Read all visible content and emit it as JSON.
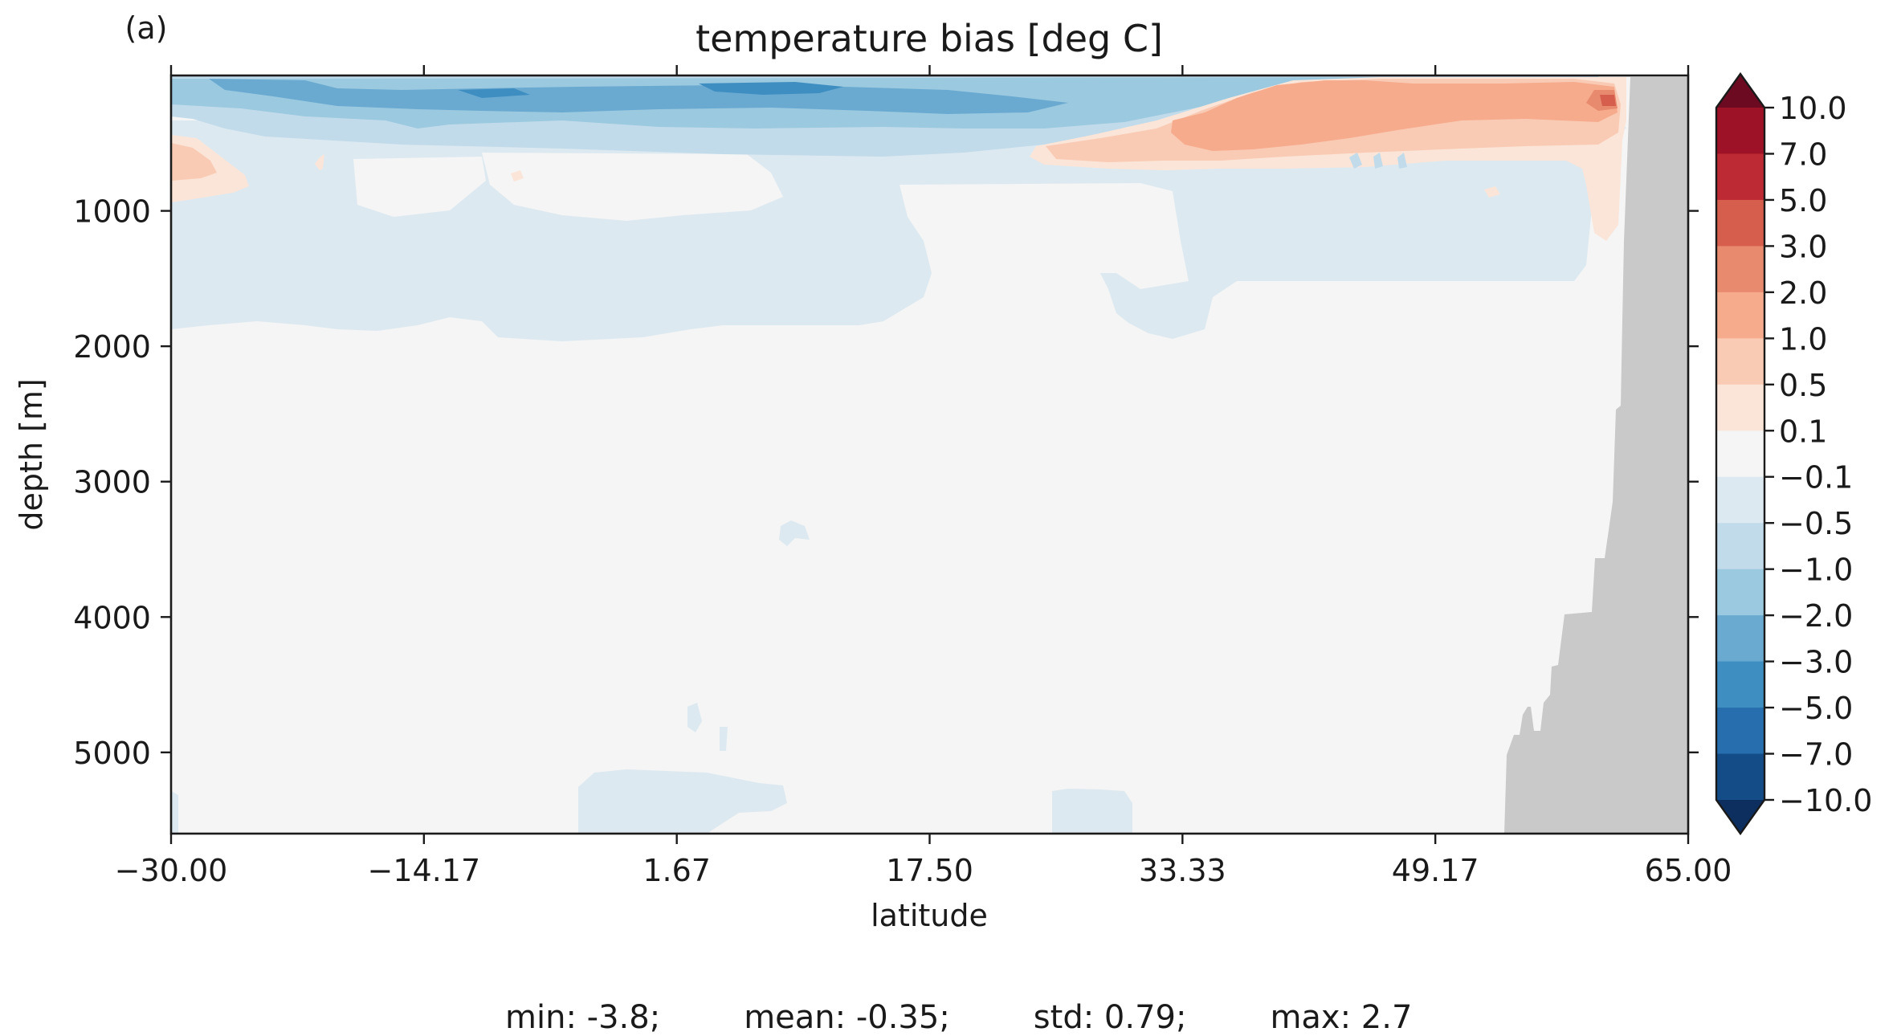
{
  "panel_label": "(a)",
  "chart_data": {
    "type": "heatmap",
    "title": "temperature bias [deg C]",
    "xlabel": "latitude",
    "ylabel": "depth [m]",
    "xlim": [
      -30.0,
      65.0
    ],
    "ylim": [
      5600,
      0
    ],
    "x_ticks": [
      "−30.00",
      "−14.17",
      "1.67",
      "17.50",
      "33.33",
      "49.17",
      "65.00"
    ],
    "y_ticks": [
      1000,
      2000,
      3000,
      4000,
      5000
    ],
    "colorbar": {
      "levels": [
        "10.0",
        "7.0",
        "5.0",
        "3.0",
        "2.0",
        "1.0",
        "0.5",
        "0.1",
        "−0.1",
        "−0.5",
        "−1.0",
        "−2.0",
        "−3.0",
        "−5.0",
        "−7.0",
        "−10.0"
      ],
      "colors": [
        "#9e1227",
        "#be2a33",
        "#d55e4d",
        "#e88a6e",
        "#f6ab8d",
        "#facbb4",
        "#fbe5d8",
        "#f4f5f4",
        "#dde9f1",
        "#c2dbea",
        "#9bc9e0",
        "#6aaad1",
        "#3f8ec1",
        "#266ead",
        "#144c88"
      ],
      "extend_top_color": "#6c0a22",
      "extend_bottom_color": "#0c2f60",
      "land_color": "#c9c9c9"
    },
    "stats": {
      "min": "min: -3.8;",
      "mean": "mean: -0.35;",
      "std": "std: 0.79;",
      "max": "max: 2.7"
    }
  }
}
